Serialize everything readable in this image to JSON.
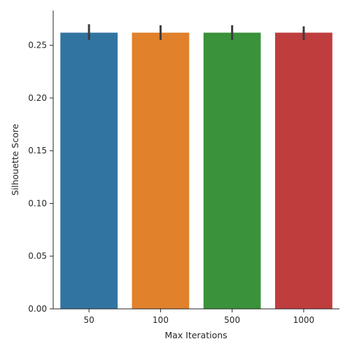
{
  "chart_data": {
    "type": "bar",
    "title": "",
    "xlabel": "Max Iterations",
    "ylabel": "Silhouette Score",
    "categories": [
      "50",
      "100",
      "500",
      "1000"
    ],
    "values": [
      0.262,
      0.262,
      0.262,
      0.262
    ],
    "error_bars": [
      {
        "low": 0.255,
        "high": 0.27
      },
      {
        "low": 0.255,
        "high": 0.269
      },
      {
        "low": 0.255,
        "high": 0.269
      },
      {
        "low": 0.255,
        "high": 0.268
      }
    ],
    "colors": [
      "#3274a1",
      "#e1812c",
      "#3a923a",
      "#c03d3e"
    ],
    "ylim": [
      0,
      0.283
    ],
    "yticks": [
      "0.00",
      "0.05",
      "0.10",
      "0.15",
      "0.20",
      "0.25"
    ],
    "grid": false,
    "legend": "none"
  }
}
